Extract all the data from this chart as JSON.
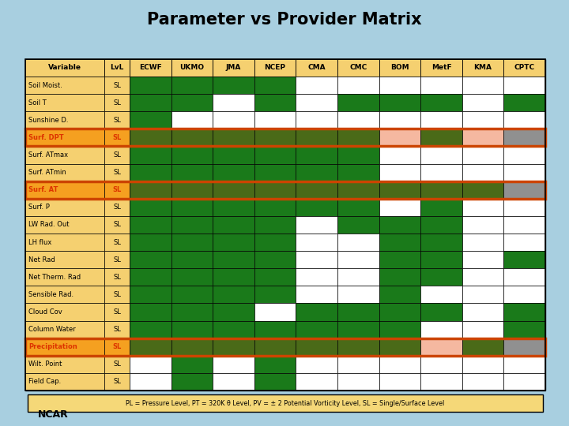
{
  "title": "Parameter vs Provider Matrix",
  "columns": [
    "Variable",
    "LvL",
    "ECWF",
    "UKMO",
    "JMA",
    "NCEP",
    "CMA",
    "CMC",
    "BOM",
    "MetF",
    "KMA",
    "CPTC"
  ],
  "rows": [
    {
      "var": "Soil Moist.",
      "lvl": "SL",
      "highlight": false,
      "cells": [
        1,
        1,
        1,
        1,
        0,
        0,
        0,
        0,
        0,
        0
      ]
    },
    {
      "var": "Soil T",
      "lvl": "SL",
      "highlight": false,
      "cells": [
        1,
        1,
        0,
        1,
        0,
        1,
        1,
        1,
        0,
        1
      ]
    },
    {
      "var": "Sunshine D.",
      "lvl": "SL",
      "highlight": false,
      "cells": [
        1,
        0,
        0,
        0,
        0,
        0,
        0,
        0,
        0,
        0
      ]
    },
    {
      "var": "Surf. DPT",
      "lvl": "SL",
      "highlight": true,
      "cells": [
        1,
        1,
        1,
        1,
        1,
        1,
        2,
        1,
        2,
        3
      ]
    },
    {
      "var": "Surf. ATmax",
      "lvl": "SL",
      "highlight": false,
      "cells": [
        1,
        1,
        1,
        1,
        1,
        1,
        0,
        0,
        0,
        0
      ]
    },
    {
      "var": "Surf. ATmin",
      "lvl": "SL",
      "highlight": false,
      "cells": [
        1,
        1,
        1,
        1,
        1,
        1,
        0,
        0,
        0,
        0
      ]
    },
    {
      "var": "Surf. AT",
      "lvl": "SL",
      "highlight": true,
      "cells": [
        1,
        1,
        1,
        1,
        1,
        1,
        1,
        1,
        1,
        3
      ]
    },
    {
      "var": "Surf. P",
      "lvl": "SL",
      "highlight": false,
      "cells": [
        1,
        1,
        1,
        1,
        1,
        1,
        0,
        1,
        0,
        0
      ]
    },
    {
      "var": "LW Rad. Out",
      "lvl": "SL",
      "highlight": false,
      "cells": [
        1,
        1,
        1,
        1,
        0,
        1,
        1,
        1,
        0,
        0
      ]
    },
    {
      "var": "LH flux",
      "lvl": "SL",
      "highlight": false,
      "cells": [
        1,
        1,
        1,
        1,
        0,
        0,
        1,
        1,
        0,
        0
      ]
    },
    {
      "var": "Net Rad",
      "lvl": "SL",
      "highlight": false,
      "cells": [
        1,
        1,
        1,
        1,
        0,
        0,
        1,
        1,
        0,
        1
      ]
    },
    {
      "var": "Net Therm. Rad",
      "lvl": "SL",
      "highlight": false,
      "cells": [
        1,
        1,
        1,
        1,
        0,
        0,
        1,
        1,
        0,
        0
      ]
    },
    {
      "var": "Sensible Rad.",
      "lvl": "SL",
      "highlight": false,
      "cells": [
        1,
        1,
        1,
        1,
        0,
        0,
        1,
        0,
        0,
        0
      ]
    },
    {
      "var": "Cloud Cov",
      "lvl": "SL",
      "highlight": false,
      "cells": [
        1,
        1,
        1,
        0,
        1,
        1,
        1,
        1,
        0,
        1
      ]
    },
    {
      "var": "Column Water",
      "lvl": "SL",
      "highlight": false,
      "cells": [
        1,
        1,
        1,
        1,
        1,
        1,
        1,
        0,
        0,
        1
      ]
    },
    {
      "var": "Precipitation",
      "lvl": "SL",
      "highlight": true,
      "cells": [
        1,
        1,
        1,
        1,
        1,
        1,
        1,
        2,
        1,
        3
      ]
    },
    {
      "var": "Wilt. Point",
      "lvl": "SL",
      "highlight": false,
      "cells": [
        0,
        1,
        0,
        1,
        0,
        0,
        0,
        0,
        0,
        0
      ]
    },
    {
      "var": "Field Cap.",
      "lvl": "SL",
      "highlight": false,
      "cells": [
        0,
        1,
        0,
        1,
        0,
        0,
        0,
        0,
        0,
        0
      ]
    }
  ],
  "color_green": "#1a7a1a",
  "color_dark_green": "#4a6a18",
  "color_white": "#ffffff",
  "color_salmon": "#f5b8a0",
  "color_gray": "#909090",
  "color_row_highlight": "#f5a020",
  "color_row_normal": "#f5d070",
  "color_header_bg": "#f5d070",
  "footnote": "PL = Pressure Level, PT = 320K θ Level, PV = ± 2 Potential Vorticity Level, SL = Single/Surface Level",
  "bg_color": "#a8cfe0",
  "title_fontsize": 15,
  "header_fontsize": 6.5,
  "cell_fontsize": 6.0
}
